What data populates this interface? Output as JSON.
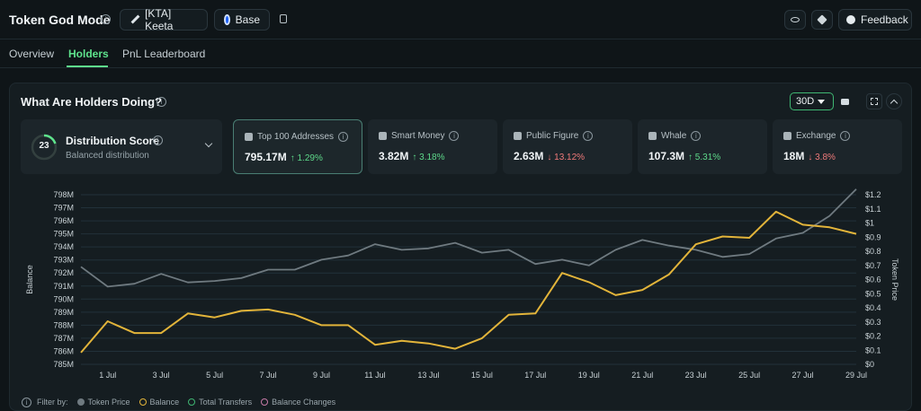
{
  "header": {
    "title": "Token God Mode",
    "token_label": "[KTA] Keeta",
    "chain_label": "Base",
    "feedback_label": "Feedback"
  },
  "tabs": [
    {
      "label": "Overview"
    },
    {
      "label": "Holders"
    },
    {
      "label": "PnL Leaderboard"
    }
  ],
  "section": {
    "title": "What Are Holders Doing?",
    "range": "30D"
  },
  "distribution": {
    "score": "23",
    "title": "Distribution Score",
    "subtitle": "Balanced distribution"
  },
  "stats": [
    {
      "label": "Top 100 Addresses",
      "value": "795.17M",
      "delta": "↑ 1.29%",
      "direction": "up",
      "icon": "address-book-icon"
    },
    {
      "label": "Smart Money",
      "value": "3.82M",
      "delta": "↑ 3.18%",
      "direction": "up",
      "icon": "brain-icon"
    },
    {
      "label": "Public Figure",
      "value": "2.63M",
      "delta": "↓ 13.12%",
      "direction": "down",
      "icon": "star-icon"
    },
    {
      "label": "Whale",
      "value": "107.3M",
      "delta": "↑ 5.31%",
      "direction": "up",
      "icon": "whale-icon"
    },
    {
      "label": "Exchange",
      "value": "18M",
      "delta": "↓ 3.8%",
      "direction": "down",
      "icon": "bank-icon"
    }
  ],
  "filter": {
    "label": "Filter by:",
    "items": [
      {
        "label": "Token Price",
        "color": "#6f7a80"
      },
      {
        "label": "Balance",
        "color": "#e2b43a"
      },
      {
        "label": "Total Transfers",
        "color": "#3fb672"
      },
      {
        "label": "Balance Changes",
        "color": "#c77aa6"
      }
    ]
  },
  "chart_data": {
    "type": "line",
    "x": [
      "30 Jun",
      "1 Jul",
      "2 Jul",
      "3 Jul",
      "4 Jul",
      "5 Jul",
      "6 Jul",
      "7 Jul",
      "8 Jul",
      "9 Jul",
      "10 Jul",
      "11 Jul",
      "12 Jul",
      "13 Jul",
      "14 Jul",
      "15 Jul",
      "16 Jul",
      "17 Jul",
      "18 Jul",
      "19 Jul",
      "20 Jul",
      "21 Jul",
      "22 Jul",
      "23 Jul",
      "24 Jul",
      "25 Jul",
      "26 Jul",
      "27 Jul",
      "28 Jul",
      "29 Jul"
    ],
    "x_tick_labels": [
      "1 Jul",
      "3 Jul",
      "5 Jul",
      "7 Jul",
      "9 Jul",
      "11 Jul",
      "13 Jul",
      "15 Jul",
      "17 Jul",
      "19 Jul",
      "21 Jul",
      "23 Jul",
      "25 Jul",
      "27 Jul",
      "29 Jul"
    ],
    "ylabel": "Balance",
    "y2label": "Token Price",
    "ylim": [
      785,
      798
    ],
    "y2lim": [
      0,
      1.2
    ],
    "y_tick_labels": [
      "785M",
      "786M",
      "787M",
      "788M",
      "789M",
      "790M",
      "791M",
      "792M",
      "793M",
      "794M",
      "795M",
      "796M",
      "797M",
      "798M"
    ],
    "y2_tick_labels": [
      "$0",
      "$0.1",
      "$0.2",
      "$0.3",
      "$0.4",
      "$0.5",
      "$0.6",
      "$0.7",
      "$0.8",
      "$0.9",
      "$1",
      "$1.1",
      "$1.2"
    ],
    "series": [
      {
        "name": "Balance",
        "axis": "left",
        "color": "#e2b43a",
        "values": [
          785.9,
          788.3,
          787.4,
          787.4,
          788.9,
          788.6,
          789.1,
          789.2,
          788.8,
          788.0,
          788.0,
          786.5,
          786.8,
          786.6,
          786.2,
          787.0,
          788.8,
          788.9,
          792.0,
          791.3,
          790.3,
          790.7,
          791.9,
          794.2,
          794.8,
          794.7,
          796.7,
          795.7,
          795.5,
          795.0
        ]
      },
      {
        "name": "Token Price",
        "axis": "right",
        "color": "#6f7a80",
        "values": [
          0.69,
          0.55,
          0.57,
          0.64,
          0.58,
          0.59,
          0.61,
          0.67,
          0.67,
          0.74,
          0.77,
          0.85,
          0.81,
          0.82,
          0.86,
          0.79,
          0.81,
          0.71,
          0.74,
          0.7,
          0.81,
          0.88,
          0.84,
          0.81,
          0.76,
          0.78,
          0.89,
          0.93,
          1.05,
          1.24
        ]
      }
    ],
    "grid": true,
    "legend": "bottom-left"
  }
}
